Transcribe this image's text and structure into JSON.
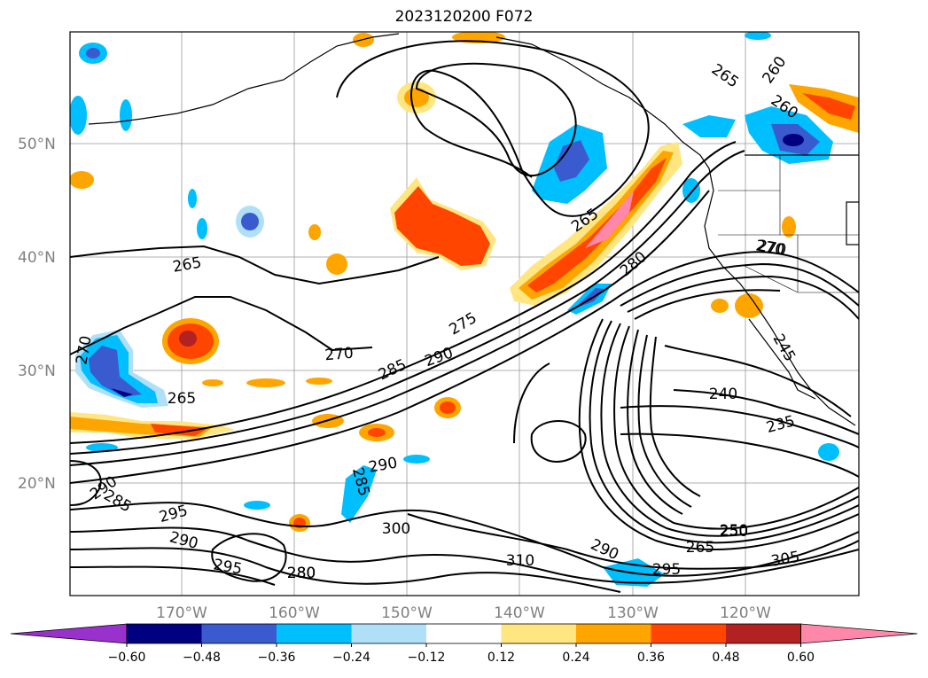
{
  "title": "2023120200 F072",
  "lat_labels": [
    "50°N",
    "40°N",
    "30°N",
    "20°N"
  ],
  "lon_labels": [
    "170°W",
    "160°W",
    "150°W",
    "140°W",
    "130°W",
    "120°W"
  ],
  "colorbar": {
    "ticks": [
      "−0.60",
      "−0.48",
      "−0.36",
      "−0.24",
      "−0.12",
      "0.12",
      "0.24",
      "0.36",
      "0.48",
      "0.60"
    ],
    "colors": [
      "#9932cc",
      "#000080",
      "#3a5bcf",
      "#00bfff",
      "#b0e0f8",
      "#ffffff",
      "#ffe680",
      "#ffa500",
      "#ff4500",
      "#b22222",
      "#ff88aa"
    ]
  },
  "contour_labels": [
    "265",
    "260",
    "260",
    "265",
    "265",
    "270",
    "270",
    "275",
    "280",
    "280",
    "285",
    "290",
    "270",
    "265",
    "250",
    "240",
    "235",
    "245",
    "290",
    "285",
    "290",
    "285",
    "295",
    "290",
    "295",
    "300",
    "310",
    "290",
    "295",
    "265",
    "250",
    "305",
    "280",
    "270"
  ]
}
